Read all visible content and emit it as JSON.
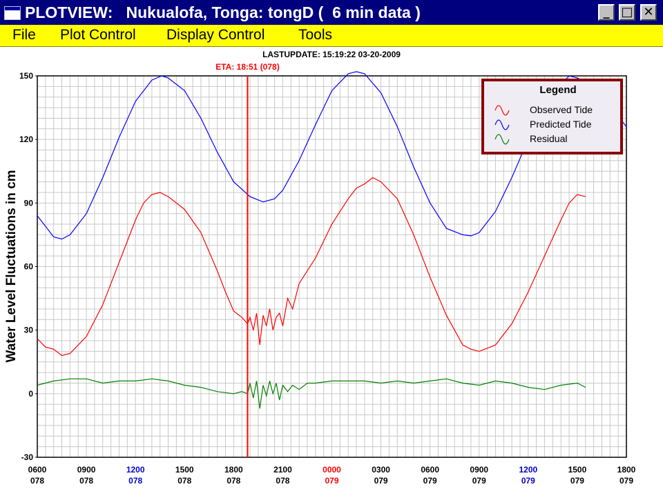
{
  "window": {
    "title": "PLOTVIEW:   Nukualofa, Tonga: tongD (  6 min data )",
    "buttons": {
      "minimize": "_",
      "maximize": "□",
      "close": "✕"
    }
  },
  "menu": [
    {
      "label": "File"
    },
    {
      "label": "Plot Control"
    },
    {
      "label": "Display Control"
    },
    {
      "label": "Tools"
    }
  ],
  "header": {
    "last_update": "LASTUPDATE: 15:19:22  03-20-2009",
    "eta": "ETA: 18:51 (078)"
  },
  "legend": {
    "title": "Legend",
    "items": [
      "Observed Tide",
      "Predicted Tide",
      "Residual"
    ]
  },
  "colors": {
    "observed": "#ff0000",
    "predicted": "#0000ff",
    "residual": "#008000",
    "eta_line": "#ff0000",
    "legend_border": "#8b0000",
    "legend_bg": "#f0ecf4"
  },
  "chart_data": {
    "type": "line",
    "ylabel": "Water Level Fluctuations in cm",
    "ylim": [
      -30,
      150
    ],
    "yticks": [
      -30,
      0,
      30,
      60,
      90,
      120,
      150
    ],
    "x_unit": "hours from 0600 day 078",
    "xlim": [
      0,
      36
    ],
    "xticks": [
      {
        "time": "0600",
        "day": "078",
        "color": "#000000"
      },
      {
        "time": "0900",
        "day": "078",
        "color": "#000000"
      },
      {
        "time": "1200",
        "day": "078",
        "color": "#0000cc"
      },
      {
        "time": "1500",
        "day": "078",
        "color": "#000000"
      },
      {
        "time": "1800",
        "day": "078",
        "color": "#000000"
      },
      {
        "time": "2100",
        "day": "078",
        "color": "#000000"
      },
      {
        "time": "0000",
        "day": "079",
        "color": "#ff0000"
      },
      {
        "time": "0300",
        "day": "079",
        "color": "#000000"
      },
      {
        "time": "0600",
        "day": "079",
        "color": "#000000"
      },
      {
        "time": "0900",
        "day": "079",
        "color": "#000000"
      },
      {
        "time": "1200",
        "day": "079",
        "color": "#0000cc"
      },
      {
        "time": "1500",
        "day": "079",
        "color": "#000000"
      },
      {
        "time": "1800",
        "day": "079",
        "color": "#000000"
      }
    ],
    "eta_x": 12.85,
    "grid": true,
    "legend_position": "top-right",
    "series": [
      {
        "name": "Predicted Tide",
        "x": [
          0,
          1,
          1.5,
          2,
          3,
          4,
          5,
          6,
          7,
          7.6,
          8,
          9,
          10,
          11,
          12,
          13,
          13.8,
          14.5,
          15,
          16,
          17,
          18,
          19,
          19.5,
          20,
          21,
          22,
          23,
          24,
          25,
          26,
          26.5,
          27,
          28,
          29,
          30,
          31,
          32,
          32.5,
          33,
          34,
          35,
          35.5,
          36
        ],
        "y": [
          84,
          74,
          73,
          75,
          85,
          102,
          121,
          138,
          148,
          150,
          149,
          143,
          130,
          114,
          100,
          93,
          90.5,
          92,
          96,
          110,
          127,
          143,
          151,
          152,
          151,
          142,
          126,
          107,
          90,
          78,
          75,
          74.5,
          76,
          86,
          102,
          120,
          136,
          146,
          150,
          149,
          145,
          136,
          131,
          126
        ]
      },
      {
        "name": "Observed Tide",
        "x": [
          0,
          0.5,
          1,
          1.5,
          2,
          3,
          4,
          5,
          6,
          6.5,
          7,
          7.5,
          8,
          9,
          10,
          11,
          11.5,
          12,
          12.5,
          12.85,
          13,
          13.2,
          13.4,
          13.6,
          13.8,
          14,
          14.2,
          14.4,
          14.6,
          14.8,
          15,
          15.3,
          15.6,
          16,
          16.5,
          17,
          18,
          19,
          19.5,
          20,
          20.5,
          21,
          22,
          23,
          24,
          25,
          26,
          26.5,
          27,
          28,
          29,
          30,
          31,
          32,
          32.5,
          33,
          33.5
        ],
        "y": [
          26,
          22,
          21,
          18,
          19,
          27,
          42,
          62,
          82,
          90,
          94,
          95,
          93,
          87,
          76,
          58,
          48,
          39,
          36,
          33,
          36,
          30,
          38,
          23,
          37,
          32,
          40,
          30,
          36,
          38,
          32,
          45,
          40,
          52,
          58,
          64,
          80,
          92,
          97,
          99,
          102,
          100,
          92,
          75,
          55,
          37,
          23,
          21,
          20,
          23,
          33,
          48,
          65,
          82,
          90,
          94,
          93
        ]
      },
      {
        "name": "Residual",
        "x": [
          0,
          1,
          2,
          3,
          4,
          5,
          6,
          7,
          8,
          9,
          10,
          11,
          12,
          12.5,
          12.85,
          13,
          13.2,
          13.4,
          13.6,
          13.8,
          14,
          14.2,
          14.4,
          14.6,
          14.8,
          15,
          15.3,
          15.6,
          16,
          16.5,
          17,
          18,
          19,
          20,
          21,
          22,
          23,
          24,
          25,
          26,
          27,
          28,
          29,
          30,
          31,
          32,
          33,
          33.5
        ],
        "y": [
          4,
          6,
          7,
          7,
          5,
          6,
          6,
          7,
          6,
          4,
          3,
          1,
          0,
          1,
          0,
          5,
          -2,
          6,
          -7,
          4,
          -1,
          6,
          0,
          5,
          -3,
          4,
          1,
          4,
          2,
          5,
          5,
          6,
          6,
          6,
          5,
          6,
          5,
          6,
          7,
          5,
          4,
          6,
          5,
          3,
          2,
          4,
          5,
          3
        ]
      }
    ]
  }
}
